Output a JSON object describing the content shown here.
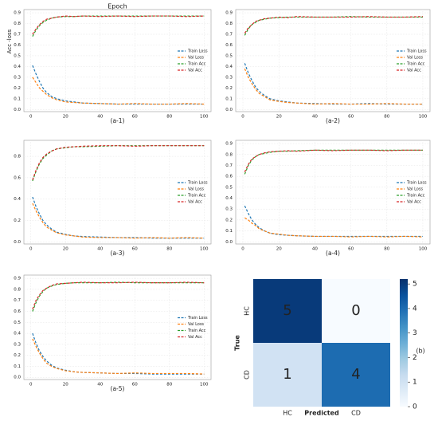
{
  "chart_data": [
    {
      "type": "line",
      "title": "Epoch",
      "ylabel": "Acc -loss",
      "label": "(a-1)",
      "x": [
        1,
        3,
        5,
        7,
        9,
        12,
        15,
        20,
        25,
        30,
        40,
        50,
        60,
        70,
        80,
        90,
        100
      ],
      "series": [
        {
          "name": "Train Loss",
          "color": "#1f77b4",
          "values": [
            0.41,
            0.33,
            0.26,
            0.2,
            0.16,
            0.12,
            0.1,
            0.08,
            0.07,
            0.06,
            0.055,
            0.05,
            0.05,
            0.05,
            0.05,
            0.05,
            0.05
          ]
        },
        {
          "name": "Val Loss",
          "color": "#ff7f0e",
          "values": [
            0.3,
            0.25,
            0.2,
            0.17,
            0.14,
            0.11,
            0.09,
            0.07,
            0.065,
            0.06,
            0.055,
            0.05,
            0.055,
            0.05,
            0.05,
            0.055,
            0.05
          ]
        },
        {
          "name": "Train Acc",
          "color": "#2ca02c",
          "values": [
            0.68,
            0.74,
            0.78,
            0.81,
            0.83,
            0.85,
            0.86,
            0.865,
            0.865,
            0.87,
            0.87,
            0.87,
            0.87,
            0.87,
            0.87,
            0.87,
            0.87
          ]
        },
        {
          "name": "Val Acc",
          "color": "#d62728",
          "values": [
            0.7,
            0.75,
            0.79,
            0.82,
            0.84,
            0.85,
            0.86,
            0.87,
            0.865,
            0.87,
            0.865,
            0.87,
            0.865,
            0.87,
            0.87,
            0.865,
            0.87
          ]
        }
      ],
      "xlim": [
        -4,
        104
      ],
      "xticks": [
        0,
        20,
        40,
        60,
        80,
        100
      ],
      "ylim": [
        -0.02,
        0.93
      ],
      "yticks": [
        {
          "value": 0,
          "label": "0.0"
        },
        {
          "value": 0.1,
          "label": "0.1"
        },
        {
          "value": 0.2,
          "label": "0.2"
        },
        {
          "value": 0.3,
          "label": "0.3"
        },
        {
          "value": 0.4,
          "label": "0.4"
        },
        {
          "value": 0.5,
          "label": "0.5"
        },
        {
          "value": 0.6,
          "label": "0.6"
        },
        {
          "value": 0.7,
          "label": "0.7"
        },
        {
          "value": 0.8,
          "label": "0.8"
        },
        {
          "value": 0.9,
          "label": "0.9"
        }
      ],
      "grid": true,
      "legend": "center right"
    },
    {
      "type": "line",
      "label": "(a-2)",
      "x": [
        1,
        3,
        5,
        7,
        9,
        12,
        15,
        20,
        25,
        30,
        40,
        50,
        60,
        70,
        80,
        90,
        100
      ],
      "series": [
        {
          "name": "Train Loss",
          "color": "#1f77b4",
          "values": [
            0.43,
            0.34,
            0.27,
            0.21,
            0.17,
            0.13,
            0.1,
            0.08,
            0.07,
            0.06,
            0.055,
            0.05,
            0.05,
            0.055,
            0.05,
            0.05,
            0.05
          ]
        },
        {
          "name": "Val Loss",
          "color": "#ff7f0e",
          "values": [
            0.38,
            0.3,
            0.24,
            0.19,
            0.15,
            0.12,
            0.09,
            0.075,
            0.065,
            0.06,
            0.05,
            0.055,
            0.05,
            0.05,
            0.055,
            0.05,
            0.05
          ]
        },
        {
          "name": "Train Acc",
          "color": "#2ca02c",
          "values": [
            0.69,
            0.75,
            0.79,
            0.81,
            0.83,
            0.84,
            0.85,
            0.855,
            0.86,
            0.86,
            0.86,
            0.86,
            0.865,
            0.86,
            0.86,
            0.86,
            0.86
          ]
        },
        {
          "name": "Val Acc",
          "color": "#d62728",
          "values": [
            0.71,
            0.76,
            0.79,
            0.82,
            0.83,
            0.845,
            0.85,
            0.86,
            0.855,
            0.865,
            0.86,
            0.86,
            0.86,
            0.865,
            0.86,
            0.86,
            0.865
          ]
        }
      ],
      "xlim": [
        -4,
        104
      ],
      "xticks": [
        0,
        20,
        40,
        60,
        80,
        100
      ],
      "ylim": [
        -0.02,
        0.93
      ],
      "yticks": [
        {
          "value": 0,
          "label": "0.0"
        },
        {
          "value": 0.1,
          "label": "0.1"
        },
        {
          "value": 0.2,
          "label": "0.2"
        },
        {
          "value": 0.3,
          "label": "0.3"
        },
        {
          "value": 0.4,
          "label": "0.4"
        },
        {
          "value": 0.5,
          "label": "0.5"
        },
        {
          "value": 0.6,
          "label": "0.6"
        },
        {
          "value": 0.7,
          "label": "0.7"
        },
        {
          "value": 0.8,
          "label": "0.8"
        },
        {
          "value": 0.9,
          "label": "0.9"
        }
      ],
      "grid": true,
      "legend": "center right"
    },
    {
      "type": "line",
      "label": "(a-3)",
      "x": [
        1,
        3,
        5,
        7,
        9,
        12,
        15,
        20,
        25,
        30,
        40,
        50,
        60,
        70,
        80,
        90,
        100
      ],
      "series": [
        {
          "name": "Train Loss",
          "color": "#1f77b4",
          "values": [
            0.42,
            0.33,
            0.26,
            0.2,
            0.16,
            0.12,
            0.09,
            0.07,
            0.055,
            0.05,
            0.045,
            0.04,
            0.04,
            0.035,
            0.035,
            0.035,
            0.035
          ]
        },
        {
          "name": "Val Loss",
          "color": "#ff7f0e",
          "values": [
            0.36,
            0.29,
            0.23,
            0.18,
            0.14,
            0.11,
            0.085,
            0.065,
            0.055,
            0.045,
            0.04,
            0.04,
            0.035,
            0.04,
            0.035,
            0.04,
            0.035
          ]
        },
        {
          "name": "Train Acc",
          "color": "#2ca02c",
          "values": [
            0.57,
            0.66,
            0.73,
            0.78,
            0.81,
            0.85,
            0.87,
            0.88,
            0.89,
            0.89,
            0.895,
            0.9,
            0.9,
            0.9,
            0.9,
            0.9,
            0.9
          ]
        },
        {
          "name": "Val Acc",
          "color": "#d62728",
          "values": [
            0.58,
            0.67,
            0.74,
            0.79,
            0.82,
            0.85,
            0.87,
            0.885,
            0.89,
            0.895,
            0.9,
            0.9,
            0.895,
            0.9,
            0.9,
            0.9,
            0.9
          ]
        }
      ],
      "xlim": [
        -4,
        104
      ],
      "xticks": [
        0,
        20,
        40,
        60,
        80,
        100
      ],
      "ylim": [
        -0.02,
        0.95
      ],
      "yticks": [
        {
          "value": 0,
          "label": "0.0"
        },
        {
          "value": 0.2,
          "label": "0.2"
        },
        {
          "value": 0.4,
          "label": "0.4"
        },
        {
          "value": 0.6,
          "label": "0.6"
        },
        {
          "value": 0.8,
          "label": "0.8"
        }
      ],
      "grid": true,
      "legend": "center right"
    },
    {
      "type": "line",
      "label": "(a-4)",
      "x": [
        1,
        3,
        5,
        7,
        9,
        12,
        15,
        20,
        25,
        30,
        40,
        50,
        60,
        70,
        80,
        90,
        100
      ],
      "series": [
        {
          "name": "Train Loss",
          "color": "#1f77b4",
          "values": [
            0.33,
            0.26,
            0.2,
            0.16,
            0.13,
            0.1,
            0.08,
            0.065,
            0.06,
            0.055,
            0.05,
            0.05,
            0.05,
            0.05,
            0.05,
            0.05,
            0.05
          ]
        },
        {
          "name": "Val Loss",
          "color": "#ff7f0e",
          "values": [
            0.22,
            0.2,
            0.17,
            0.15,
            0.12,
            0.1,
            0.08,
            0.07,
            0.06,
            0.055,
            0.05,
            0.05,
            0.045,
            0.05,
            0.045,
            0.05,
            0.045
          ]
        },
        {
          "name": "Train Acc",
          "color": "#2ca02c",
          "values": [
            0.62,
            0.7,
            0.75,
            0.78,
            0.8,
            0.81,
            0.82,
            0.83,
            0.83,
            0.835,
            0.84,
            0.84,
            0.84,
            0.84,
            0.84,
            0.84,
            0.84
          ]
        },
        {
          "name": "Val Acc",
          "color": "#d62728",
          "values": [
            0.64,
            0.71,
            0.76,
            0.78,
            0.8,
            0.815,
            0.825,
            0.83,
            0.835,
            0.83,
            0.84,
            0.835,
            0.84,
            0.84,
            0.835,
            0.84,
            0.84
          ]
        }
      ],
      "xlim": [
        -4,
        104
      ],
      "xticks": [
        0,
        20,
        40,
        60,
        80,
        100
      ],
      "ylim": [
        -0.02,
        0.93
      ],
      "yticks": [
        {
          "value": 0,
          "label": "0.0"
        },
        {
          "value": 0.1,
          "label": "0.1"
        },
        {
          "value": 0.2,
          "label": "0.2"
        },
        {
          "value": 0.3,
          "label": "0.3"
        },
        {
          "value": 0.4,
          "label": "0.4"
        },
        {
          "value": 0.5,
          "label": "0.5"
        },
        {
          "value": 0.6,
          "label": "0.6"
        },
        {
          "value": 0.7,
          "label": "0.7"
        },
        {
          "value": 0.8,
          "label": "0.8"
        },
        {
          "value": 0.9,
          "label": "0.9"
        }
      ],
      "grid": true,
      "legend": "center right"
    },
    {
      "type": "line",
      "label": "(a-5)",
      "x": [
        1,
        3,
        5,
        7,
        9,
        12,
        15,
        20,
        25,
        30,
        40,
        50,
        60,
        70,
        80,
        90,
        100
      ],
      "series": [
        {
          "name": "Train Loss",
          "color": "#1f77b4",
          "values": [
            0.4,
            0.31,
            0.24,
            0.19,
            0.15,
            0.11,
            0.085,
            0.065,
            0.05,
            0.045,
            0.04,
            0.035,
            0.035,
            0.03,
            0.03,
            0.03,
            0.03
          ]
        },
        {
          "name": "Val Loss",
          "color": "#ff7f0e",
          "values": [
            0.35,
            0.28,
            0.22,
            0.17,
            0.13,
            0.1,
            0.08,
            0.06,
            0.05,
            0.045,
            0.04,
            0.035,
            0.04,
            0.035,
            0.035,
            0.035,
            0.03
          ]
        },
        {
          "name": "Train Acc",
          "color": "#2ca02c",
          "values": [
            0.6,
            0.68,
            0.74,
            0.78,
            0.81,
            0.83,
            0.845,
            0.855,
            0.86,
            0.86,
            0.86,
            0.865,
            0.86,
            0.86,
            0.86,
            0.86,
            0.86
          ]
        },
        {
          "name": "Val Acc",
          "color": "#d62728",
          "values": [
            0.62,
            0.7,
            0.75,
            0.79,
            0.81,
            0.835,
            0.85,
            0.855,
            0.86,
            0.865,
            0.86,
            0.86,
            0.865,
            0.86,
            0.86,
            0.865,
            0.86
          ]
        }
      ],
      "xlim": [
        -4,
        104
      ],
      "xticks": [
        0,
        20,
        40,
        60,
        80,
        100
      ],
      "ylim": [
        -0.02,
        0.93
      ],
      "yticks": [
        {
          "value": 0,
          "label": "0.0"
        },
        {
          "value": 0.1,
          "label": "0.1"
        },
        {
          "value": 0.2,
          "label": "0.2"
        },
        {
          "value": 0.3,
          "label": "0.3"
        },
        {
          "value": 0.4,
          "label": "0.4"
        },
        {
          "value": 0.5,
          "label": "0.5"
        },
        {
          "value": 0.6,
          "label": "0.6"
        },
        {
          "value": 0.7,
          "label": "0.7"
        },
        {
          "value": 0.8,
          "label": "0.8"
        },
        {
          "value": 0.9,
          "label": "0.9"
        }
      ],
      "grid": true,
      "legend": "center right"
    },
    {
      "type": "heatmap",
      "label": "(b)",
      "xlabel": "Predicted",
      "ylabel": "True",
      "x_categories": [
        "HC",
        "CD"
      ],
      "y_categories": [
        "HC",
        "CD"
      ],
      "values": [
        [
          5,
          0
        ],
        [
          1,
          4
        ]
      ],
      "colormap": [
        "#f7fbff",
        "#deebf7",
        "#c6dbef",
        "#9ecae1",
        "#6baed6",
        "#4292c6",
        "#2171b5",
        "#08519c",
        "#08306b"
      ],
      "clim": [
        0,
        5.2
      ],
      "cticks": [
        0,
        1,
        2,
        3,
        4,
        5
      ]
    }
  ]
}
